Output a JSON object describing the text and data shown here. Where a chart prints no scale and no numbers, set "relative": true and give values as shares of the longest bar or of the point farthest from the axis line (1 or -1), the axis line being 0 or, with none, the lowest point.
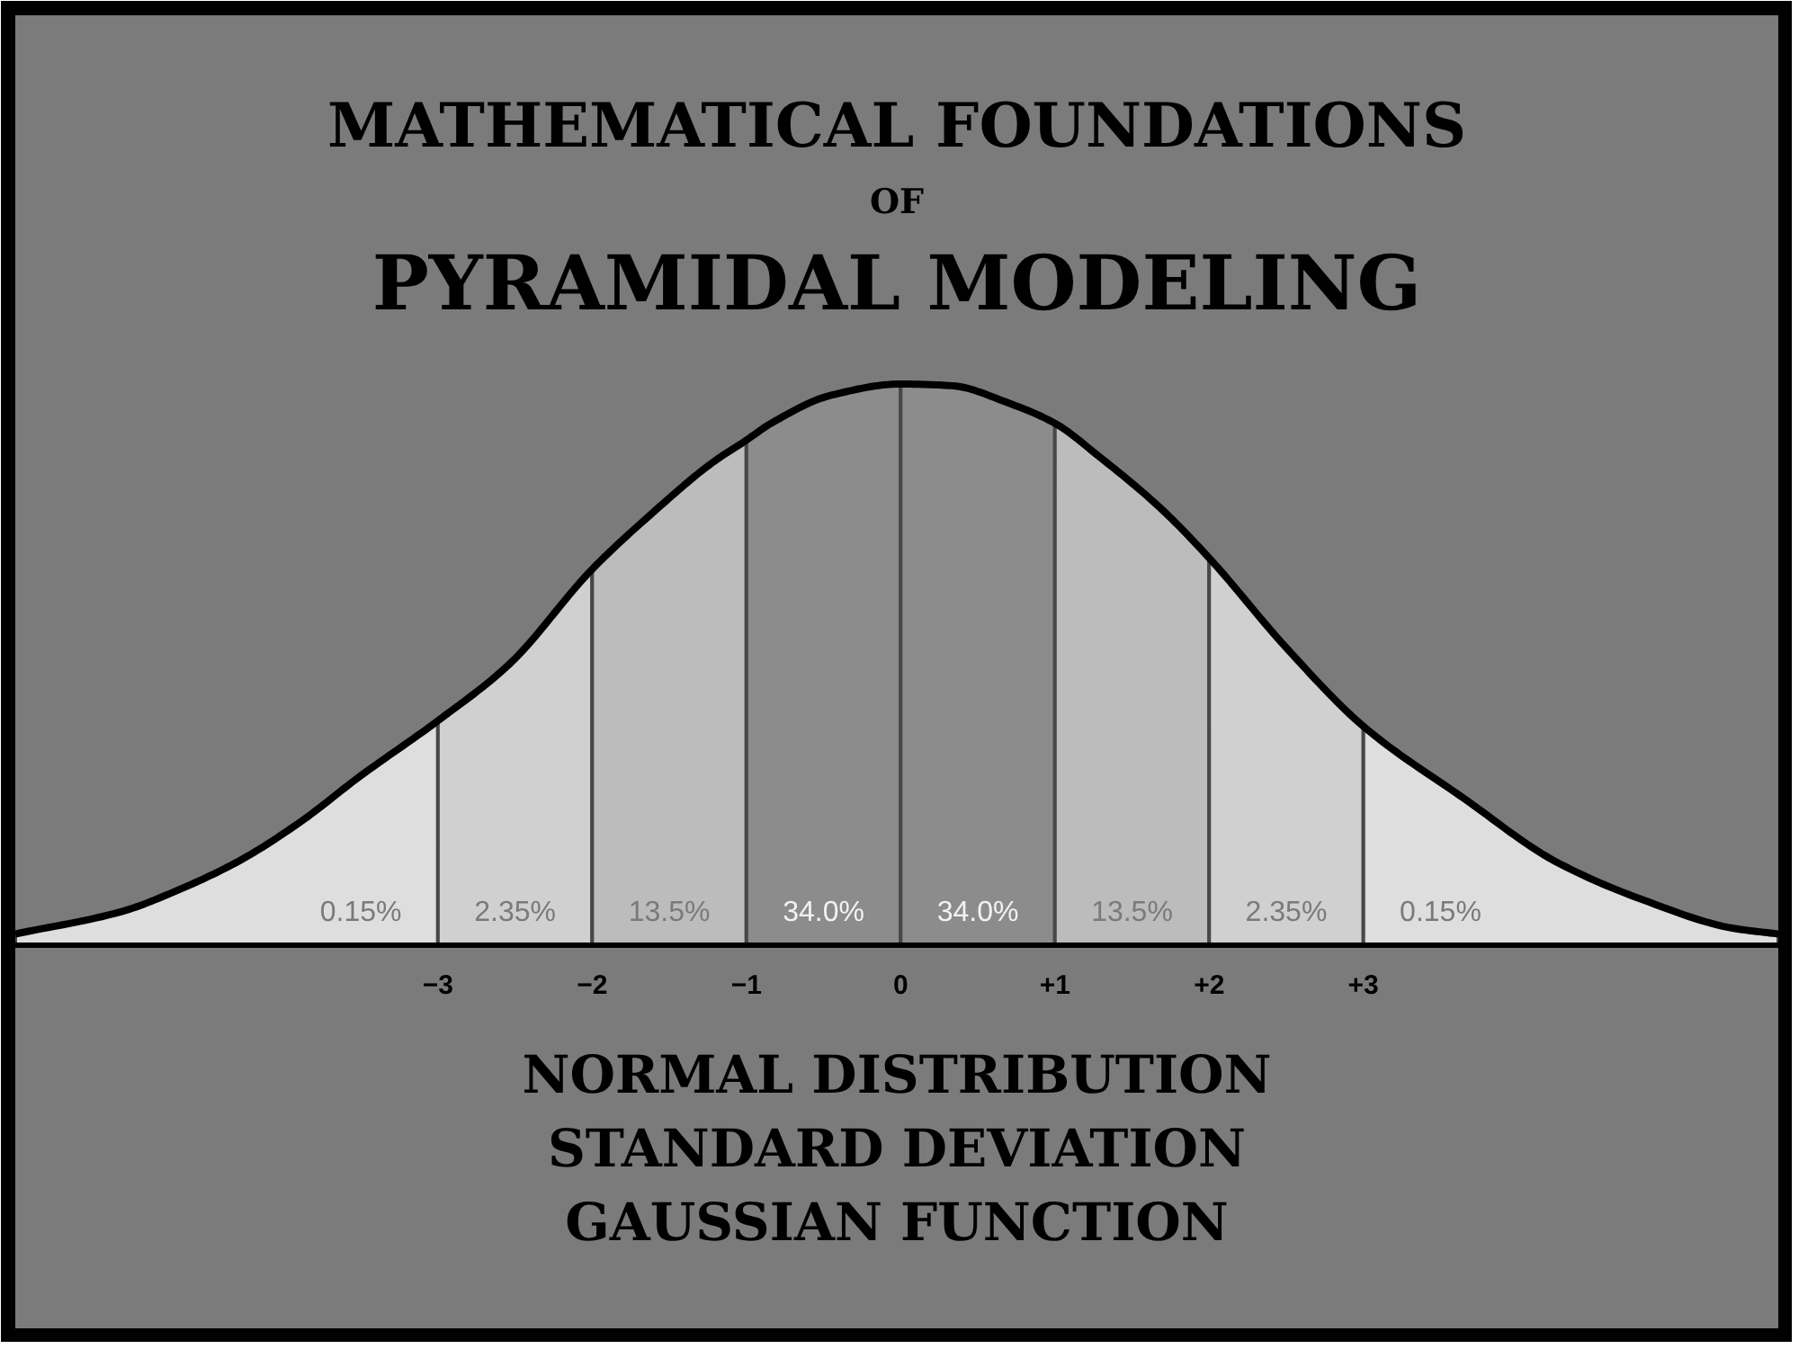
{
  "chart_data": {
    "type": "area",
    "title": "MATHEMATICAL FOUNDATIONS\nOF\nPYRAMIDAL MODELING",
    "relative": true,
    "grid": false,
    "xlim": [
      -5.74,
      5.69
    ],
    "xticks": [
      -3,
      -2,
      -1,
      0,
      {
        "value": 1,
        "label": "+1"
      },
      {
        "value": 2,
        "label": "+2"
      },
      {
        "value": 3,
        "label": "+3"
      }
    ],
    "series": [
      {
        "name": "0.15%",
        "color": "#dedede",
        "x": [
          -5.74,
          -5.05,
          -4.67,
          -4.29,
          -3.89,
          -3.51,
          -3
        ],
        "values": [
          0.02,
          0.06,
          0.1,
          0.15,
          0.22,
          0.3,
          0.4
        ]
      },
      {
        "name": "2.35%",
        "color": "#d0d0d0",
        "x": [
          -3,
          -2.54,
          -2
        ],
        "values": [
          0.4,
          0.5,
          0.67
        ]
      },
      {
        "name": "13.5%",
        "color": "#bcbcbc",
        "x": [
          -2,
          -1.61,
          -1.22,
          -1
        ],
        "values": [
          0.67,
          0.77,
          0.86,
          0.9
        ]
      },
      {
        "name": "34.0%",
        "color": "#8c8c8c",
        "x": [
          -1,
          -0.84,
          -0.45,
          0
        ],
        "values": [
          0.9,
          0.93,
          0.98,
          1
        ]
      },
      {
        "name": "34.0%",
        "color": "#8c8c8c",
        "x": [
          0,
          0.33,
          0.71,
          1
        ],
        "values": [
          1,
          0.997,
          0.965,
          0.93
        ]
      },
      {
        "name": "13.5%",
        "color": "#bcbcbc",
        "x": [
          1,
          1.29,
          1.68,
          2
        ],
        "values": [
          0.93,
          0.87,
          0.78,
          0.69
        ]
      },
      {
        "name": "2.35%",
        "color": "#d0d0d0",
        "x": [
          2,
          2.5,
          3
        ],
        "values": [
          0.69,
          0.53,
          0.39
        ]
      },
      {
        "name": "0.15%",
        "color": "#dedede",
        "x": [
          3,
          3.66,
          4.24,
          4.82,
          5.4,
          5.69
        ],
        "values": [
          0.39,
          0.26,
          0.15,
          0.08,
          0.03,
          0.02
        ]
      },
      {
        "type": "line",
        "color": "#000000",
        "x": [
          -5.74,
          -5.05,
          -4.67,
          -4.29,
          -3.89,
          -3.51,
          -3,
          -2.54,
          -2,
          -1.61,
          -1.22,
          -1,
          -0.84,
          -0.45,
          0,
          0.33,
          0.71,
          1,
          1.29,
          1.68,
          2,
          2.5,
          3,
          3.66,
          4.24,
          4.82,
          5.4,
          5.69
        ],
        "values": [
          0.02,
          0.06,
          0.1,
          0.15,
          0.22,
          0.3,
          0.4,
          0.5,
          0.67,
          0.77,
          0.86,
          0.9,
          0.93,
          0.98,
          1,
          0.997,
          0.965,
          0.93,
          0.87,
          0.78,
          0.69,
          0.53,
          0.39,
          0.26,
          0.15,
          0.08,
          0.03,
          0.02
        ]
      }
    ],
    "annotations": [
      "NORMAL DISTRIBUTION",
      "STANDARD DEVIATION",
      "GAUSSIAN FUNCTION"
    ]
  }
}
